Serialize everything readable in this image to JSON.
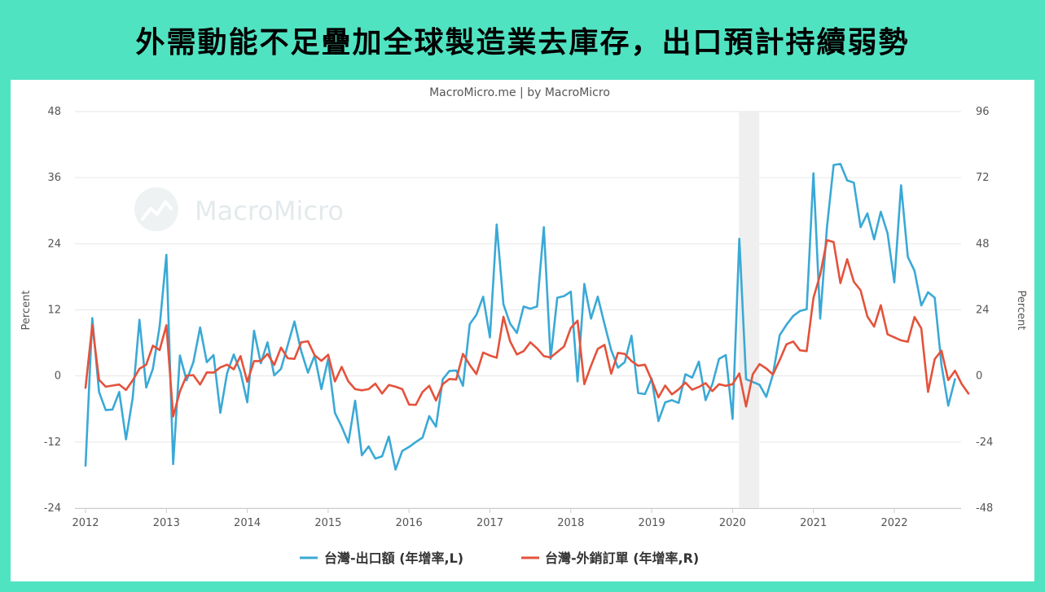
{
  "headline": "外需動能不足疊加全球製造業去庫存，出口預計持續弱勢",
  "credit": "MacroMicro.me | by MacroMicro",
  "watermark": "MacroMicro",
  "colors": {
    "background": "#50e3c2",
    "exports": "#3aa9d6",
    "orders": "#e4523b",
    "recession": "#efefef"
  },
  "chart_data": {
    "type": "line",
    "title": "",
    "y_label_left": "Percent",
    "y_label_right": "Percent",
    "y_left": {
      "min": -24,
      "max": 48,
      "ticks": [
        48,
        36,
        24,
        12,
        0,
        -12,
        -24
      ]
    },
    "y_right": {
      "min": -48,
      "max": 96,
      "ticks": [
        96,
        72,
        48,
        24,
        0,
        -24,
        -48
      ]
    },
    "x_ticks": [
      "2012",
      "2013",
      "2014",
      "2015",
      "2016",
      "2017",
      "2018",
      "2019",
      "2020",
      "2021",
      "2022"
    ],
    "x_range": [
      2012.0,
      2022.833
    ],
    "shaded_period": [
      2020.08,
      2020.33
    ],
    "legend_position": "bottom-center",
    "grid": true,
    "series": [
      {
        "name": "台灣-出口額 (年增率,L)",
        "axis": "left",
        "start": 2012.0,
        "values": [
          -16.3,
          10.5,
          -2.9,
          -6.2,
          -6.1,
          -2.9,
          -11.5,
          -4.0,
          10.2,
          -2.1,
          1.3,
          9.0,
          22.0,
          -16.0,
          3.7,
          -0.8,
          2.5,
          8.8,
          2.5,
          3.8,
          -6.7,
          0.5,
          3.9,
          0.7,
          -4.8,
          8.2,
          2.3,
          6.1,
          0.1,
          1.3,
          5.6,
          9.9,
          4.5,
          0.6,
          3.7,
          -2.4,
          3.1,
          -6.7,
          -9.2,
          -12.1,
          -4.5,
          -14.4,
          -12.8,
          -15.0,
          -14.6,
          -11.0,
          -17.0,
          -13.6,
          -12.9,
          -12.0,
          -11.2,
          -7.3,
          -9.2,
          -0.6,
          0.9,
          1.0,
          -1.8,
          9.4,
          11.1,
          14.4,
          7.0,
          27.5,
          13.0,
          9.5,
          7.8,
          12.6,
          12.2,
          12.6,
          27.0,
          3.1,
          14.2,
          14.5,
          15.3,
          -1.0,
          16.7,
          10.4,
          14.4,
          9.4,
          4.7,
          1.5,
          2.5,
          7.3,
          -3.1,
          -3.3,
          -0.5,
          -8.2,
          -4.8,
          -4.4,
          -4.9,
          0.3,
          -0.3,
          2.6,
          -4.4,
          -1.5,
          3.1,
          3.8,
          -7.8,
          24.9,
          -0.6,
          -1.1,
          -1.6,
          -3.8,
          0.3,
          7.4,
          9.3,
          10.9,
          11.8,
          12.1,
          36.8,
          10.4,
          27.0,
          38.3,
          38.5,
          35.5,
          35.1,
          27.0,
          29.5,
          24.8,
          29.8,
          25.9,
          17.0,
          34.6,
          21.6,
          19.1,
          12.8,
          15.2,
          14.2,
          2.0,
          -5.4,
          -0.6
        ]
      },
      {
        "name": "台灣-外銷訂單 (年增率,R)",
        "axis": "right",
        "start": 2012.0,
        "values": [
          -4.3,
          18.5,
          -1.4,
          -3.9,
          -3.5,
          -3.1,
          -5.1,
          -1.6,
          2.6,
          4.1,
          11.0,
          9.4,
          18.4,
          -14.7,
          -5.6,
          0.1,
          0.3,
          -3.1,
          1.3,
          1.2,
          3.1,
          4.1,
          2.4,
          7.2,
          -2.1,
          5.4,
          5.4,
          8.0,
          4.0,
          10.3,
          6.4,
          6.2,
          12.2,
          12.6,
          7.5,
          5.5,
          7.7,
          -2.0,
          3.3,
          -2.0,
          -4.8,
          -5.2,
          -4.8,
          -2.8,
          -6.4,
          -3.3,
          -3.9,
          -4.8,
          -10.4,
          -10.5,
          -5.8,
          -3.6,
          -8.9,
          -3.0,
          -1.1,
          -1.3,
          8.0,
          4.0,
          0.7,
          8.5,
          7.4,
          6.6,
          21.5,
          12.6,
          7.8,
          9.0,
          12.2,
          10.0,
          7.2,
          6.7,
          8.7,
          10.7,
          17.4,
          20.1,
          -3.0,
          3.7,
          9.8,
          11.3,
          0.8,
          8.4,
          8.0,
          5.4,
          3.7,
          4.1,
          -1.5,
          -7.8,
          -3.5,
          -6.7,
          -4.9,
          -2.4,
          -5.0,
          -4.0,
          -2.6,
          -5.5,
          -3.0,
          -3.6,
          -3.0,
          0.9,
          -11.1,
          0.6,
          4.3,
          2.7,
          0.5,
          5.8,
          11.5,
          12.5,
          9.3,
          9.0,
          28.3,
          36.8,
          49.3,
          48.6,
          33.7,
          42.4,
          34.2,
          31.1,
          21.6,
          17.9,
          25.7,
          15.1,
          14.0,
          12.9,
          12.4,
          21.4,
          17.3,
          -5.8,
          6.1,
          9.2,
          -1.5,
          1.9,
          -2.9,
          -6.4
        ]
      }
    ]
  }
}
